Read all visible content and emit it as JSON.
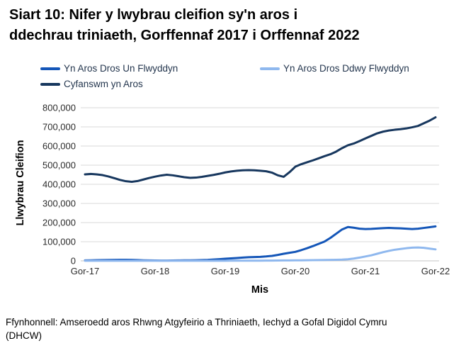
{
  "title": {
    "line1": "Siart 10: Nifer y lwybrau cleifion sy'n aros i",
    "line2": "ddechrau triniaeth, Gorffennaf 2017 i Orffennaf 2022"
  },
  "legend": {
    "items": [
      {
        "label": "Yn Aros Dros Un Flwyddyn",
        "color": "#1456B8"
      },
      {
        "label": "Yn Aros Dros Ddwy Flwyddyn",
        "color": "#8FB8EE"
      },
      {
        "label": "Cyfanswm yn Aros",
        "color": "#17375E"
      }
    ]
  },
  "footer": {
    "line1": "Ffynhonnell: Amseroedd aros Rhwng Atgyfeirio a Thriniaeth, Iechyd a Gofal Digidol Cymru",
    "line2": "(DHCW)"
  },
  "chart_data": {
    "type": "line",
    "title": "Siart 10: Nifer y lwybrau cleifion sy'n aros i ddechrau triniaeth, Gorffennaf 2017 i Orffennaf 2022",
    "xlabel": "Mis",
    "ylabel": "Llwybrau Cleifion",
    "x": {
      "start": "Gor-17",
      "end": "Gor-22",
      "interval": "monthly",
      "n_points": 61
    },
    "x_tick_labels": [
      "Gor-17",
      "Gor-18",
      "Gor-19",
      "Gor-20",
      "Gor-21",
      "Gor-22"
    ],
    "y_ticks": [
      0,
      100000,
      200000,
      300000,
      400000,
      500000,
      600000,
      700000,
      800000
    ],
    "y_tick_labels": [
      "0",
      "100,000",
      "200,000",
      "300,000",
      "400,000",
      "500,000",
      "600,000",
      "700,000",
      "800,000"
    ],
    "ylim": [
      0,
      800000
    ],
    "grid": "horizontal",
    "legend_position": "top",
    "series": [
      {
        "name": "Yn Aros Dros Un Flwyddyn",
        "color": "#1456B8",
        "values": [
          2500,
          3000,
          3500,
          4000,
          4500,
          5000,
          5500,
          5500,
          5000,
          4000,
          3000,
          2200,
          1800,
          1600,
          1600,
          1800,
          2200,
          2800,
          2800,
          3200,
          4000,
          5000,
          7000,
          9000,
          11000,
          13000,
          15000,
          17000,
          19000,
          20000,
          21000,
          23000,
          26000,
          31000,
          37000,
          42000,
          47000,
          56000,
          66000,
          77000,
          89000,
          101000,
          120000,
          142000,
          164000,
          177000,
          173000,
          168000,
          166000,
          167000,
          169000,
          171000,
          172000,
          171000,
          170000,
          168000,
          166000,
          168000,
          172000,
          176000,
          180000
        ]
      },
      {
        "name": "Yn Aros Dros Ddwy Flwyddyn",
        "color": "#8FB8EE",
        "values": [
          300,
          300,
          300,
          300,
          300,
          300,
          400,
          400,
          400,
          400,
          400,
          400,
          400,
          400,
          400,
          400,
          400,
          400,
          500,
          500,
          500,
          500,
          500,
          600,
          600,
          700,
          700,
          800,
          900,
          1000,
          1100,
          1200,
          1500,
          1800,
          2100,
          2400,
          2700,
          3000,
          3400,
          3800,
          4200,
          4600,
          5000,
          5600,
          6500,
          8500,
          12000,
          17000,
          23000,
          29000,
          37000,
          45000,
          52000,
          58000,
          62000,
          66000,
          69000,
          70000,
          68000,
          64000,
          60000
        ]
      },
      {
        "name": "Cyfanswm yn Aros",
        "color": "#17375E",
        "values": [
          452000,
          454000,
          452000,
          448000,
          441000,
          432000,
          423000,
          416000,
          413000,
          417000,
          425000,
          433000,
          440000,
          446000,
          450000,
          447000,
          442000,
          437000,
          434000,
          435000,
          439000,
          444000,
          449000,
          455000,
          462000,
          467000,
          471000,
          473000,
          474000,
          473000,
          471000,
          468000,
          461000,
          447000,
          439000,
          463000,
          492000,
          505000,
          515000,
          525000,
          536000,
          547000,
          557000,
          571000,
          589000,
          604000,
          613000,
          626000,
          640000,
          653000,
          666000,
          675000,
          681000,
          685000,
          688000,
          692000,
          698000,
          705000,
          719000,
          733000,
          750000
        ]
      }
    ]
  }
}
